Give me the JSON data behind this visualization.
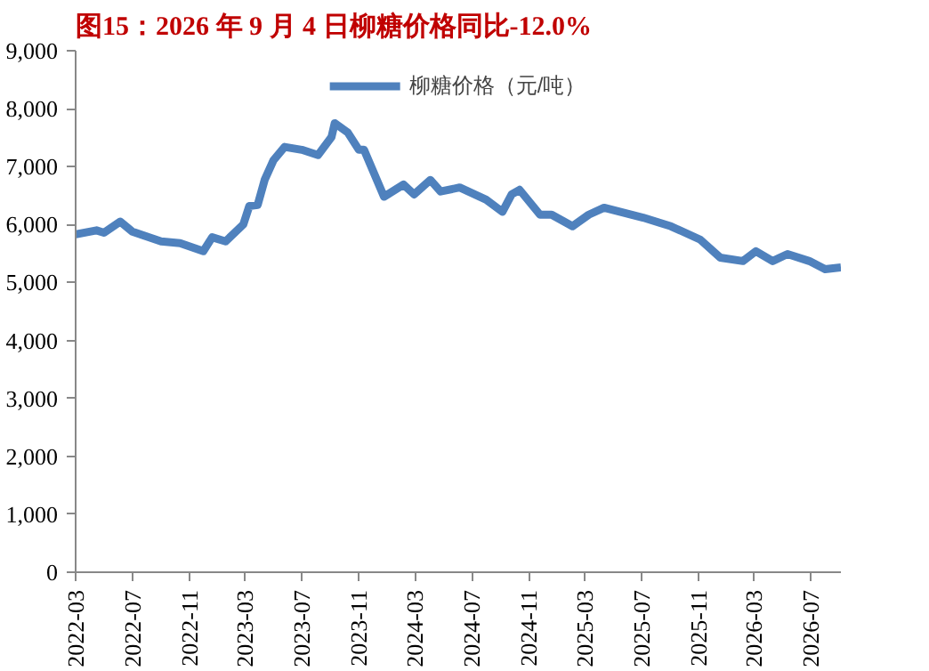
{
  "chart_data": {
    "type": "line",
    "title": "图15：2026 年 9 月 4 日柳糖价格同比-12.0%",
    "series": [
      {
        "name": "柳糖价格（元/吨）",
        "color": "#4f81bd",
        "x": [
          "2022-03-01",
          "2022-04-15",
          "2022-05-01",
          "2022-06-05",
          "2022-07-01",
          "2022-09-01",
          "2022-10-12",
          "2022-12-01",
          "2022-12-20",
          "2023-01-18",
          "2023-02-25",
          "2023-03-10",
          "2023-03-28",
          "2023-04-12",
          "2023-05-01",
          "2023-05-25",
          "2023-07-01",
          "2023-08-05",
          "2023-09-03",
          "2023-09-10",
          "2023-10-08",
          "2023-11-01",
          "2023-11-12",
          "2023-12-25",
          "2024-02-05",
          "2024-02-28",
          "2024-04-03",
          "2024-04-25",
          "2024-06-05",
          "2024-08-01",
          "2024-09-05",
          "2024-09-25",
          "2024-10-12",
          "2024-11-25",
          "2024-12-20",
          "2025-02-03",
          "2025-03-10",
          "2025-04-12",
          "2025-07-05",
          "2025-09-03",
          "2025-11-05",
          "2025-12-18",
          "2026-02-05",
          "2026-03-05",
          "2026-04-10",
          "2026-05-12",
          "2026-06-28",
          "2026-08-01",
          "2026-09-04"
        ],
        "values": [
          5830,
          5900,
          5860,
          6050,
          5880,
          5710,
          5680,
          5540,
          5780,
          5710,
          6000,
          6320,
          6340,
          6770,
          7110,
          7340,
          7290,
          7200,
          7510,
          7750,
          7590,
          7290,
          7290,
          6480,
          6690,
          6520,
          6770,
          6570,
          6640,
          6430,
          6220,
          6520,
          6600,
          6170,
          6170,
          5970,
          6170,
          6290,
          6120,
          5970,
          5740,
          5430,
          5370,
          5540,
          5370,
          5490,
          5370,
          5230,
          5260
        ]
      }
    ],
    "xlim": [
      "2022-03-01",
      "2026-09-04"
    ],
    "xticks": [
      {
        "value": "2022-03-01",
        "label": "2022-03"
      },
      {
        "value": "2022-07-01",
        "label": "2022-07"
      },
      {
        "value": "2022-11-01",
        "label": "2022-11"
      },
      {
        "value": "2023-03-01",
        "label": "2023-03"
      },
      {
        "value": "2023-07-01",
        "label": "2023-07"
      },
      {
        "value": "2023-11-01",
        "label": "2023-11"
      },
      {
        "value": "2024-03-01",
        "label": "2024-03"
      },
      {
        "value": "2024-07-01",
        "label": "2024-07"
      },
      {
        "value": "2024-11-01",
        "label": "2024-11"
      },
      {
        "value": "2025-03-01",
        "label": "2025-03"
      },
      {
        "value": "2025-07-01",
        "label": "2025-07"
      },
      {
        "value": "2025-11-01",
        "label": "2025-11"
      },
      {
        "value": "2026-03-01",
        "label": "2026-03"
      },
      {
        "value": "2026-07-01",
        "label": "2026-07"
      }
    ],
    "ylim": [
      0,
      9000
    ],
    "yticks": [
      0,
      {
        "value": 1000,
        "label": "1,000"
      },
      {
        "value": 2000,
        "label": "2,000"
      },
      {
        "value": 3000,
        "label": "3,000"
      },
      {
        "value": 4000,
        "label": "4,000"
      },
      {
        "value": 5000,
        "label": "5,000"
      },
      {
        "value": 6000,
        "label": "6,000"
      },
      {
        "value": 7000,
        "label": "7,000"
      },
      {
        "value": 8000,
        "label": "8,000"
      },
      {
        "value": 9000,
        "label": "9,000"
      }
    ],
    "grid": false,
    "legend": "top",
    "marker": "none",
    "line_style": "solid"
  }
}
